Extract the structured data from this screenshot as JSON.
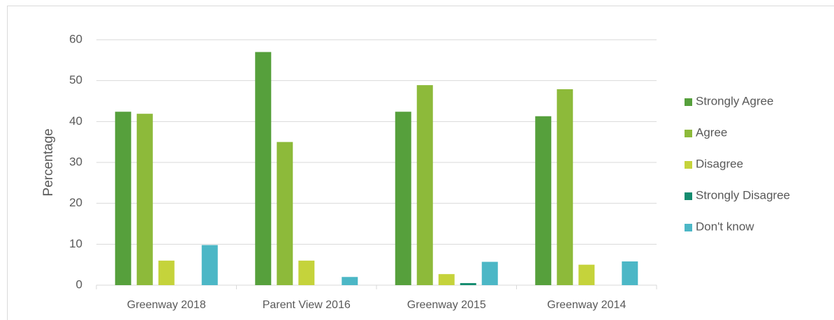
{
  "chart_data": {
    "type": "bar",
    "y_label": "Percentage",
    "categories": [
      "Greenway 2018",
      "Parent View 2016",
      "Greenway 2015",
      "Greenway 2014"
    ],
    "series": [
      {
        "name": "Strongly Agree",
        "color": "#56a03c",
        "values": [
          42.4,
          57,
          42.4,
          41.3
        ]
      },
      {
        "name": "Agree",
        "color": "#8dba3a",
        "values": [
          41.9,
          35,
          48.9,
          47.9
        ]
      },
      {
        "name": "Disagree",
        "color": "#c5d33b",
        "values": [
          6,
          6,
          2.7,
          5
        ]
      },
      {
        "name": "Strongly Disagree",
        "color": "#148c6f",
        "values": [
          0,
          0,
          0.5,
          0
        ]
      },
      {
        "name": "Don't know",
        "color": "#4cb7c6",
        "values": [
          9.8,
          2,
          5.7,
          5.8
        ]
      }
    ],
    "ylim": [
      0,
      60
    ],
    "yticks": [
      0,
      10,
      20,
      30,
      40,
      50,
      60
    ],
    "grid": true,
    "legend": "right"
  }
}
